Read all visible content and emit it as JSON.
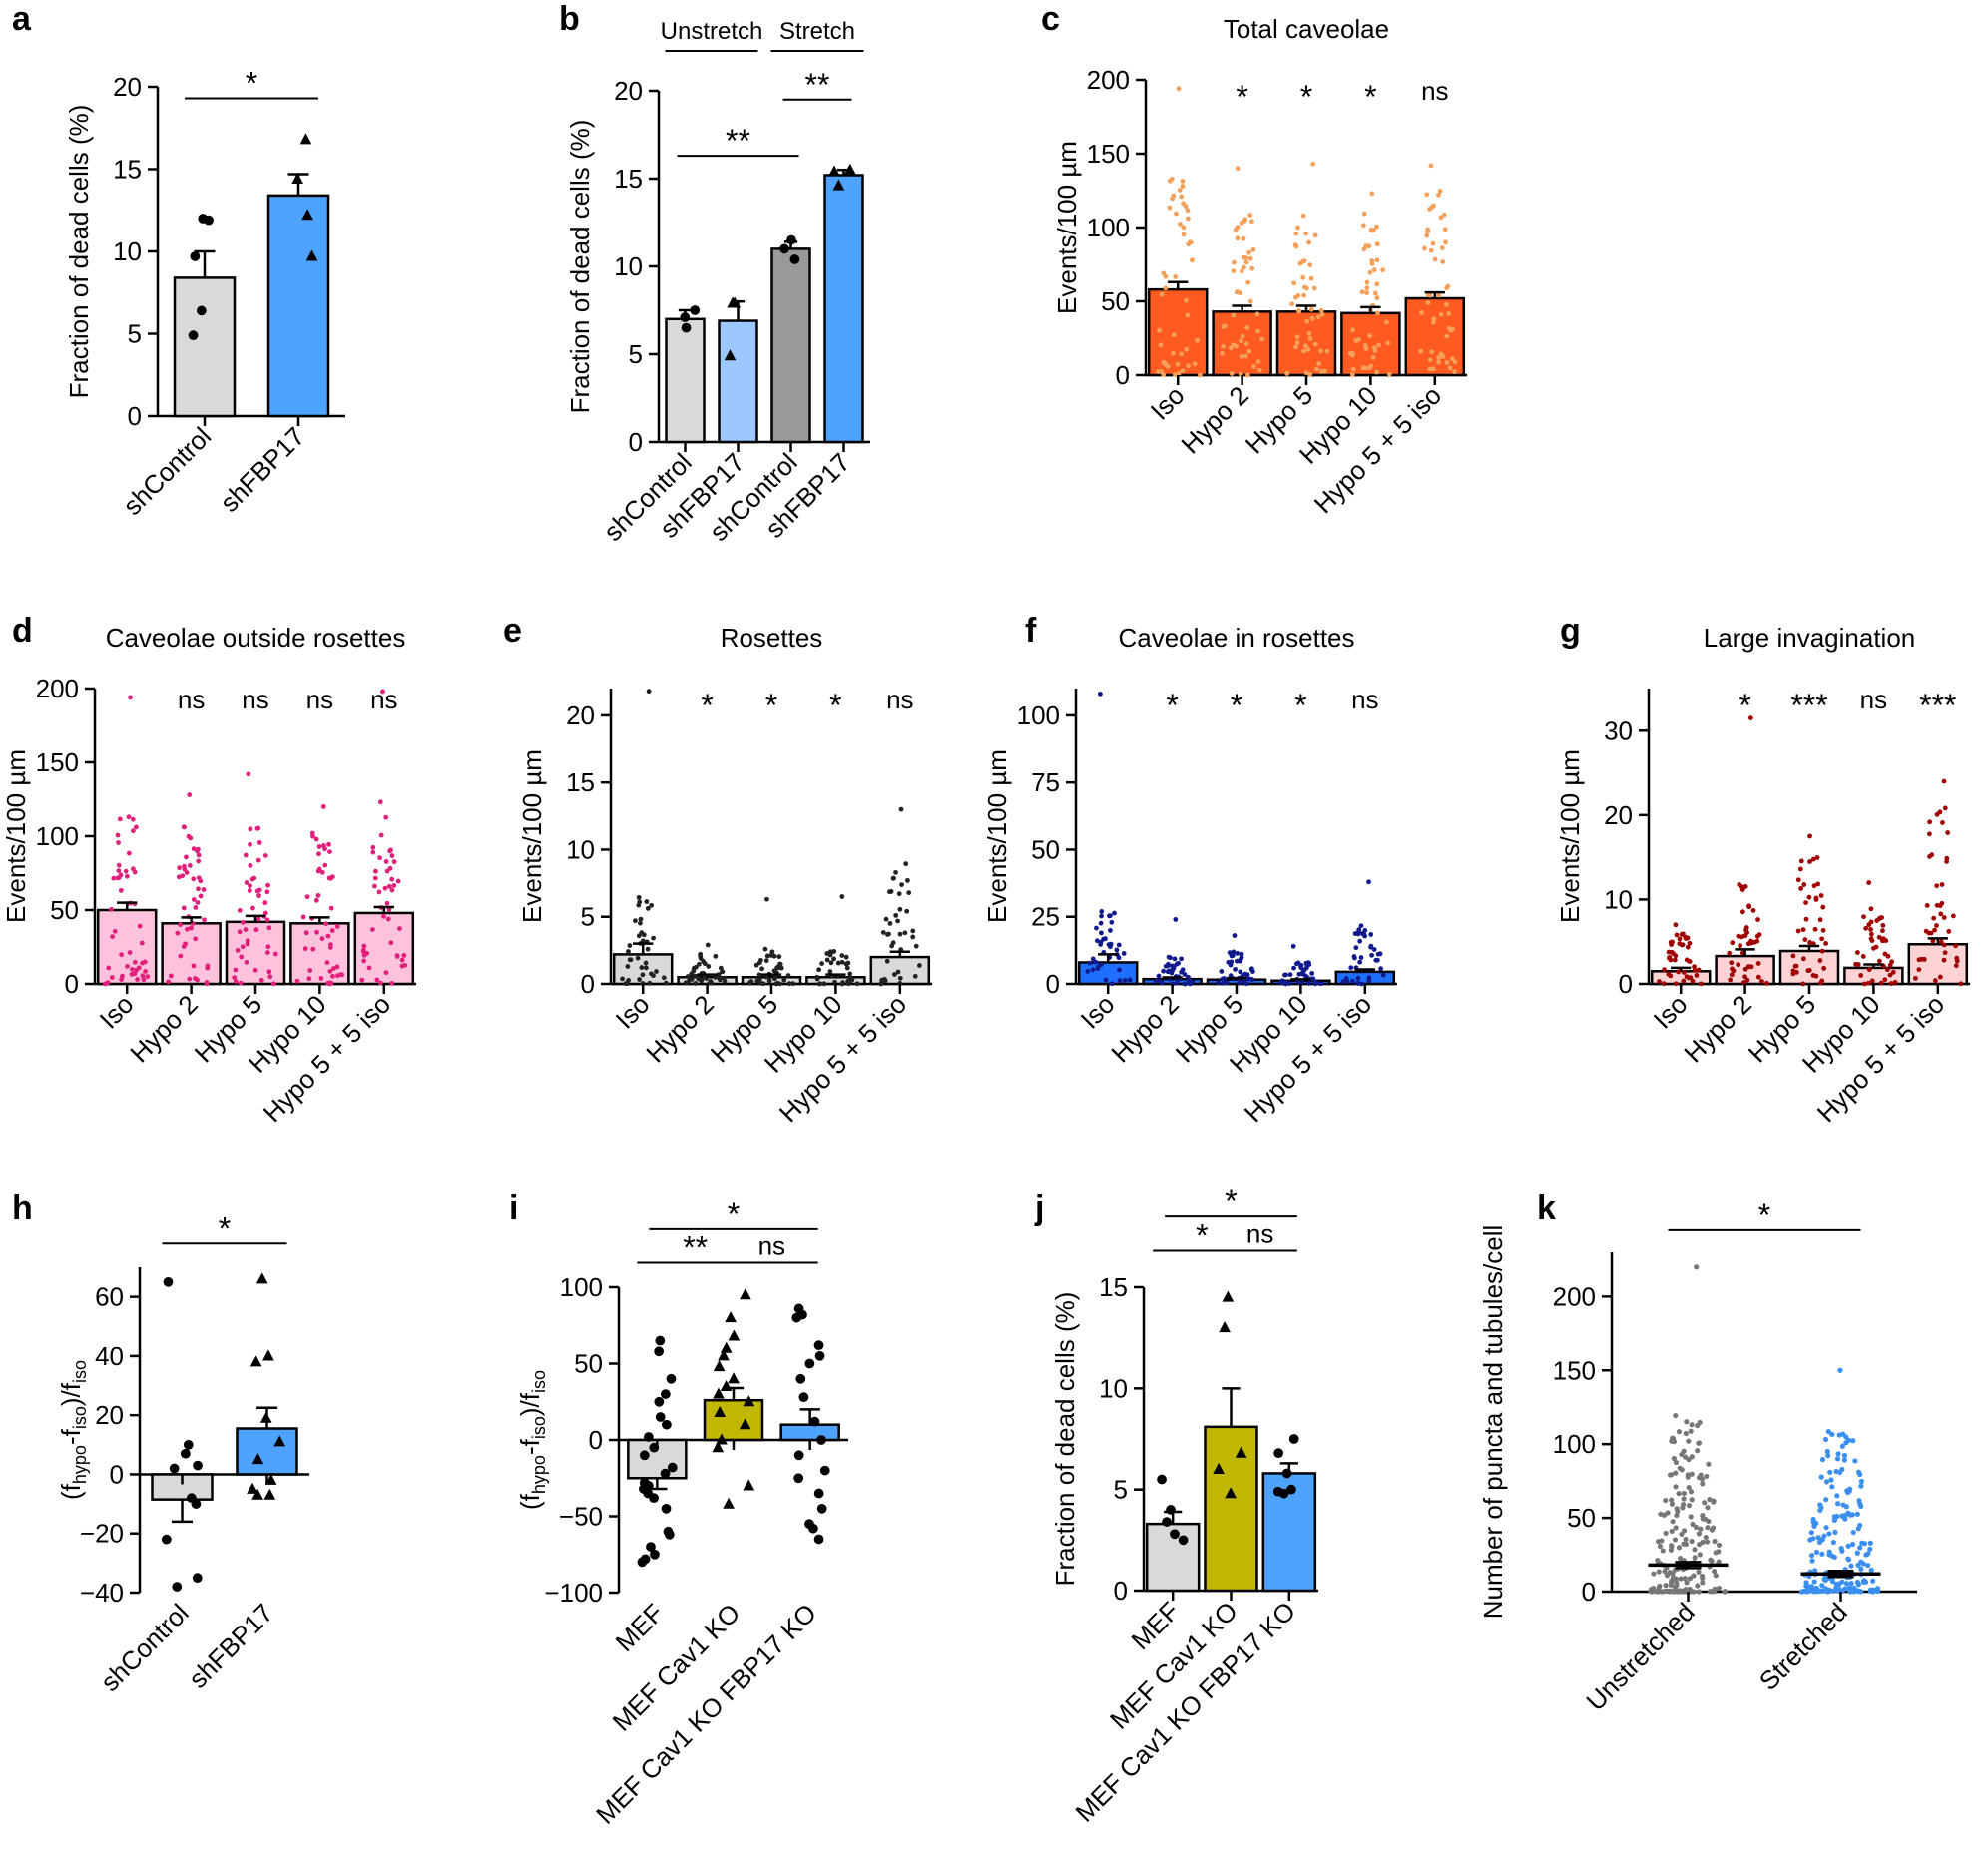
{
  "chart_data": [
    {
      "id": "a",
      "type": "bar",
      "letter": "a",
      "ylabel": "Fraction of dead cells (%)",
      "ylim": [
        0,
        20
      ],
      "yticks": [
        0,
        5,
        10,
        15,
        20
      ],
      "categories": [
        "shControl",
        "shFBP17"
      ],
      "values": [
        8.4,
        13.4
      ],
      "errors": [
        1.6,
        1.3
      ],
      "colors": [
        "#d9d9d9",
        "#4da3ff"
      ],
      "points": [
        [
          12,
          11.9,
          9.7,
          6.4,
          4.9
        ],
        [
          16.8,
          14.4,
          12.2,
          9.7
        ]
      ],
      "markers": [
        "circle",
        "triangle"
      ],
      "significance": [
        {
          "from": 0,
          "to": 1,
          "label": "*",
          "y": 19.3
        }
      ]
    },
    {
      "id": "b",
      "type": "bar",
      "letter": "b",
      "ylabel": "Fraction of dead cells (%)",
      "ylim": [
        0,
        20
      ],
      "yticks": [
        0,
        5,
        10,
        15,
        20
      ],
      "categories": [
        "shControl",
        "shFBP17",
        "shControl",
        "shFBP17"
      ],
      "values": [
        7.0,
        6.9,
        11.0,
        15.2
      ],
      "errors": [
        0.5,
        1.1,
        0.4,
        0.3
      ],
      "colors": [
        "#d9d9d9",
        "#9cc8ff",
        "#999999",
        "#4da3ff"
      ],
      "points": [
        [
          7.5,
          7.1,
          6.5
        ],
        [
          7.9,
          7.9,
          4.9
        ],
        [
          11.5,
          11.0,
          10.4
        ],
        [
          15.5,
          15.4,
          14.6
        ]
      ],
      "markers": [
        "circle",
        "triangle",
        "circle",
        "triangle"
      ],
      "groups": [
        {
          "label": "Unstretch",
          "from": 0,
          "to": 1
        },
        {
          "label": "Stretch",
          "from": 2,
          "to": 3
        }
      ],
      "significance": [
        {
          "from": 0,
          "to": 2,
          "label": "**",
          "y": 16.3
        },
        {
          "from": 2,
          "to": 3,
          "label": "**",
          "y": 19.5
        }
      ]
    },
    {
      "id": "c",
      "type": "bar",
      "letter": "c",
      "title": "Total caveolae",
      "ylabel": "Events/100 µm",
      "ylim": [
        0,
        200
      ],
      "yticks": [
        0,
        50,
        100,
        150,
        200
      ],
      "categories": [
        "Iso",
        "Hypo 2",
        "Hypo 5",
        "Hypo 10",
        "Hypo 5 + 5 iso"
      ],
      "values": [
        58,
        43,
        43,
        42,
        52
      ],
      "errors": [
        5,
        4,
        4,
        4,
        4
      ],
      "colors": [
        "#ff5a1f",
        "#ff5a1f",
        "#ff5a1f",
        "#ff5a1f",
        "#ff5a1f"
      ],
      "pointColor": "#f5a05a",
      "npoints": 50,
      "spread": [
        [
          0,
          135,
          194
        ],
        [
          0,
          120,
          140
        ],
        [
          0,
          120,
          143
        ],
        [
          0,
          115,
          123
        ],
        [
          0,
          125,
          142
        ]
      ],
      "stars": [
        "",
        "*",
        "*",
        "*",
        "ns"
      ]
    },
    {
      "id": "d",
      "type": "bar",
      "letter": "d",
      "title": "Caveolae outside rosettes",
      "ylabel": "Events/100 µm",
      "ylim": [
        0,
        200
      ],
      "yticks": [
        0,
        50,
        100,
        150,
        200
      ],
      "categories": [
        "Iso",
        "Hypo 2",
        "Hypo 5",
        "Hypo 10",
        "Hypo 5 + 5 iso"
      ],
      "values": [
        50,
        41,
        42,
        41,
        48
      ],
      "errors": [
        5,
        4,
        4,
        4,
        4
      ],
      "colors": [
        "#ffc2dc",
        "#ffc2dc",
        "#ffc2dc",
        "#ffc2dc",
        "#ffc2dc"
      ],
      "pointColor": "#e0207a",
      "npoints": 50,
      "spread": [
        [
          0,
          118,
          194
        ],
        [
          0,
          110,
          128
        ],
        [
          0,
          108,
          142
        ],
        [
          0,
          110,
          120
        ],
        [
          0,
          125,
          198
        ]
      ],
      "stars": [
        "",
        "ns",
        "ns",
        "ns",
        "ns"
      ]
    },
    {
      "id": "e",
      "type": "bar",
      "letter": "e",
      "title": "Rosettes",
      "ylabel": "Events/100 µm",
      "ylim": [
        0,
        22
      ],
      "yticks": [
        0,
        5,
        10,
        15,
        20
      ],
      "categories": [
        "Iso",
        "Hypo 2",
        "Hypo 5",
        "Hypo 10",
        "Hypo 5 + 5 iso"
      ],
      "values": [
        2.2,
        0.5,
        0.5,
        0.5,
        2.0
      ],
      "errors": [
        0.8,
        0.2,
        0.2,
        0.2,
        0.4
      ],
      "colors": [
        "#d9d9d9",
        "#d9d9d9",
        "#d9d9d9",
        "#d9d9d9",
        "#d9d9d9"
      ],
      "pointColor": "#222222",
      "npoints": 40,
      "spread": [
        [
          0,
          6.5,
          21.8
        ],
        [
          0,
          2.5,
          2.9
        ],
        [
          0,
          2.8,
          6.3
        ],
        [
          0,
          2.5,
          6.5
        ],
        [
          0,
          9,
          13
        ]
      ],
      "stars": [
        "",
        "*",
        "*",
        "*",
        "ns"
      ]
    },
    {
      "id": "f",
      "type": "bar",
      "letter": "f",
      "title": "Caveolae in rosettes",
      "ylabel": "Events/100 µm",
      "ylim": [
        0,
        110
      ],
      "yticks": [
        0,
        25,
        50,
        75,
        100
      ],
      "categories": [
        "Iso",
        "Hypo 2",
        "Hypo 5",
        "Hypo 10",
        "Hypo 5 + 5 iso"
      ],
      "values": [
        8,
        1.8,
        1.6,
        1.2,
        4.5
      ],
      "errors": [
        3,
        0.6,
        0.6,
        0.5,
        0.9
      ],
      "colors": [
        "#1f6fff",
        "#1f6fff",
        "#1f6fff",
        "#1f6fff",
        "#1f6fff"
      ],
      "pointColor": "#101a8c",
      "npoints": 40,
      "spread": [
        [
          0,
          28,
          108
        ],
        [
          0,
          10,
          24
        ],
        [
          0,
          12,
          18
        ],
        [
          0,
          8,
          14
        ],
        [
          0,
          22,
          38
        ]
      ],
      "stars": [
        "",
        "*",
        "*",
        "*",
        "ns"
      ]
    },
    {
      "id": "g",
      "type": "bar",
      "letter": "g",
      "title": "Large invagination",
      "ylabel": "Events/100 µm",
      "ylim": [
        0,
        35
      ],
      "yticks": [
        0,
        10,
        20,
        30
      ],
      "categories": [
        "Iso",
        "Hypo 2",
        "Hypo 5",
        "Hypo 10",
        "Hypo 5 + 5 iso"
      ],
      "values": [
        1.5,
        3.3,
        3.9,
        1.9,
        4.7
      ],
      "errors": [
        0.4,
        0.8,
        0.6,
        0.4,
        0.7
      ],
      "colors": [
        "#ffd3d3",
        "#ffd3d3",
        "#ffd3d3",
        "#ffd3d3",
        "#ffd3d3"
      ],
      "pointColor": "#a00000",
      "npoints": 45,
      "spread": [
        [
          0,
          6.0,
          7.0
        ],
        [
          0,
          12,
          31.5
        ],
        [
          0,
          15,
          17.5
        ],
        [
          0,
          9,
          12
        ],
        [
          0,
          21,
          24
        ]
      ],
      "stars": [
        "",
        "*",
        "***",
        "ns",
        "***"
      ]
    },
    {
      "id": "h",
      "type": "bar",
      "letter": "h",
      "ylabel": "(fhypo-fiso)/fiso",
      "ylim": [
        -40,
        70
      ],
      "yticks": [
        -40,
        -20,
        0,
        20,
        40,
        60
      ],
      "categories": [
        "shControl",
        "shFBP17"
      ],
      "values": [
        -8.5,
        15.5
      ],
      "errors": [
        7.5,
        7
      ],
      "colors": [
        "#d9d9d9",
        "#4da3ff"
      ],
      "points": [
        [
          65,
          10,
          7,
          3,
          2,
          -8,
          -10,
          -22,
          -35,
          -38
        ],
        [
          66,
          40,
          38,
          19,
          11,
          5,
          -2,
          -5,
          -7,
          -7
        ]
      ],
      "markers": [
        "circle",
        "triangle"
      ],
      "significance": [
        {
          "from": 0,
          "to": 1,
          "label": "*",
          "y": 78
        }
      ]
    },
    {
      "id": "i",
      "type": "bar",
      "letter": "i",
      "ylabel": "(fhypo-fiso)/fiso",
      "ylim": [
        -100,
        100
      ],
      "yticks": [
        -100,
        -50,
        0,
        50,
        100
      ],
      "categories": [
        "MEF",
        "MEF Cav1 KO",
        "MEF Cav1 KO FBP17 KO"
      ],
      "values": [
        -25,
        26,
        10
      ],
      "errors": [
        7,
        8,
        10
      ],
      "colors": [
        "#d9d9d9",
        "#c2b700",
        "#4da3ff"
      ],
      "points": [
        [
          65,
          58,
          40,
          30,
          25,
          15,
          10,
          2,
          -5,
          -10,
          -18,
          -22,
          -28,
          -30,
          -32,
          -35,
          -38,
          -45,
          -60,
          -62,
          -70,
          -75,
          -78,
          -80
        ],
        [
          95,
          80,
          68,
          60,
          55,
          48,
          40,
          35,
          30,
          25,
          18,
          10,
          0,
          -5,
          -30,
          -42
        ],
        [
          86,
          82,
          80,
          62,
          55,
          50,
          40,
          28,
          12,
          0,
          -10,
          -20,
          -25,
          -35,
          -45,
          -55,
          -58,
          -65
        ]
      ],
      "markers": [
        "circle",
        "triangle",
        "circle"
      ],
      "significance": [
        {
          "from": 0,
          "to": 1,
          "label": "**",
          "y": 116
        },
        {
          "from": 1,
          "to": 2,
          "label": "ns",
          "y": 116
        },
        {
          "from": 0,
          "to": 2,
          "label": "*",
          "y": 138
        }
      ]
    },
    {
      "id": "j",
      "type": "bar",
      "letter": "j",
      "ylabel": "Fraction of dead cells (%)",
      "ylim": [
        0,
        15
      ],
      "yticks": [
        0,
        5,
        10,
        15
      ],
      "categories": [
        "MEF",
        "MEF Cav1 KO",
        "MEF Cav1 KO FBP17 KO"
      ],
      "values": [
        3.3,
        8.1,
        5.8
      ],
      "errors": [
        0.6,
        1.9,
        0.5
      ],
      "colors": [
        "#d9d9d9",
        "#c2b700",
        "#4da3ff"
      ],
      "points": [
        [
          5.5,
          4.0,
          3.4,
          2.8,
          2.5
        ],
        [
          14.5,
          13.0,
          6.8,
          6.0,
          4.8
        ],
        [
          7.5,
          6.8,
          5.8,
          5.0,
          4.9,
          4.8
        ]
      ],
      "markers": [
        "circle",
        "triangle",
        "circle"
      ],
      "significance": [
        {
          "from": 0,
          "to": 1,
          "label": "*",
          "y": 16.8
        },
        {
          "from": 1,
          "to": 2,
          "label": "ns",
          "y": 16.8
        },
        {
          "from": 0,
          "to": 2,
          "label": "*",
          "y": 18.5
        }
      ]
    },
    {
      "id": "k",
      "type": "scatter",
      "letter": "k",
      "ylabel": "Number of puncta and tubules/cell",
      "ylim": [
        0,
        230
      ],
      "yticks": [
        0,
        50,
        100,
        150,
        200
      ],
      "categories": [
        "Unstretched",
        "Stretched"
      ],
      "values": [
        18,
        12
      ],
      "errors": [
        2,
        2
      ],
      "colors": [
        "#777777",
        "#3b8ff0"
      ],
      "pointColor": [
        "#777777",
        "#3b8ff0"
      ],
      "npoints": 200,
      "spread": [
        [
          0,
          120,
          220
        ],
        [
          0,
          110,
          150
        ]
      ],
      "significance": [
        {
          "from": 0,
          "to": 1,
          "label": "*",
          "y": 245
        }
      ]
    }
  ]
}
